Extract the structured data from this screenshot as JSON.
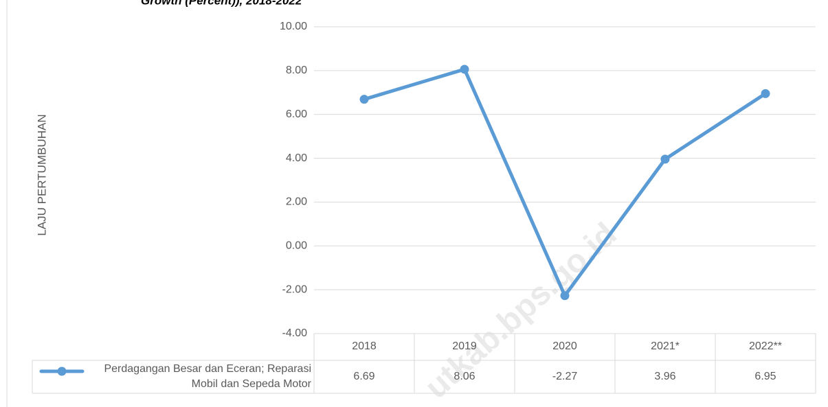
{
  "chart_data": {
    "type": "line",
    "title": "Growth (Percent)), 2018-2022",
    "y_axis_label": "LAJU PERTUMBUHAN",
    "watermark": "utkab.bps.go.id",
    "categories": [
      "2018",
      "2019",
      "2020",
      "2021*",
      "2022**"
    ],
    "series": [
      {
        "name": "Perdagangan Besar dan Eceran; Reparasi Mobil dan Sepeda Motor",
        "color": "#5b9bd5",
        "values": [
          6.69,
          8.06,
          -2.27,
          3.96,
          6.95
        ]
      }
    ],
    "ylim": [
      -4,
      10
    ],
    "yticks": [
      {
        "value": -4,
        "label": "-4.00"
      },
      {
        "value": -2,
        "label": "-2.00"
      },
      {
        "value": 0,
        "label": "0.00"
      },
      {
        "value": 2,
        "label": "2.00"
      },
      {
        "value": 4,
        "label": "4.00"
      },
      {
        "value": 6,
        "label": "6.00"
      },
      {
        "value": 8,
        "label": "8.00"
      },
      {
        "value": 10,
        "label": "10.00"
      }
    ],
    "grid": true,
    "data_table": true
  }
}
